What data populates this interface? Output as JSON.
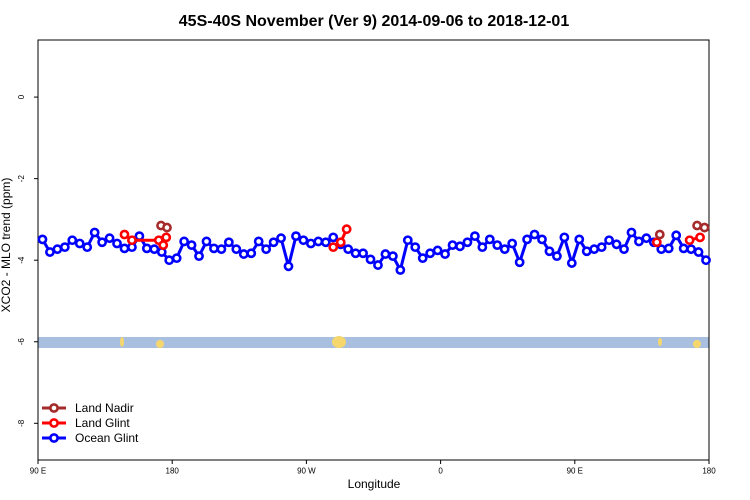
{
  "chart_data": {
    "type": "line",
    "title": "45S-40S November (Ver 9)   2014-09-06 to 2018-12-01",
    "x_label": "Longitude",
    "y_label": "XCO2 - MLO trend (ppm)",
    "xlim": [
      90,
      540
    ],
    "ylim": [
      -8.9,
      1.4
    ],
    "xticks": [
      {
        "value": 90,
        "label": "90 E"
      },
      {
        "value": 180,
        "label": "180"
      },
      {
        "value": 270,
        "label": "90 W"
      },
      {
        "value": 360,
        "label": "0"
      },
      {
        "value": 450,
        "label": "90 E"
      },
      {
        "value": 540,
        "label": "180"
      }
    ],
    "yticks": [
      0,
      -2,
      -4,
      -6,
      -8
    ],
    "legend": "bottom-left",
    "series": [
      {
        "name": "Land Nadir",
        "color": "#a52a2a",
        "x": [
          172.5,
          176.5,
          null,
          507,
          null,
          532,
          537
        ],
        "values": [
          -3.15,
          -3.2,
          null,
          -3.37,
          null,
          -3.15,
          -3.2
        ]
      },
      {
        "name": "Land Glint",
        "color": "#ff0000",
        "x": [
          148,
          153,
          171,
          174,
          176,
          null,
          288,
          293,
          297,
          null,
          505,
          null,
          527,
          534
        ],
        "values": [
          -3.37,
          -3.51,
          -3.51,
          -3.63,
          -3.44,
          null,
          -3.68,
          -3.56,
          -3.24,
          null,
          -3.56,
          null,
          -3.51,
          -3.44
        ]
      },
      {
        "name": "Ocean Glint",
        "color": "#0000ff",
        "x": [
          93,
          98,
          103,
          108,
          113,
          118,
          123,
          128,
          133,
          138,
          143,
          148,
          153,
          158,
          163,
          168,
          173,
          178,
          183,
          188,
          193,
          198,
          203,
          208,
          213,
          218,
          223,
          228,
          233,
          238,
          243,
          248,
          253,
          258,
          263,
          268,
          273,
          278,
          283,
          288,
          293,
          298,
          303,
          308,
          313,
          318,
          323,
          328,
          333,
          338,
          343,
          348,
          353,
          358,
          363,
          368,
          373,
          378,
          383,
          388,
          393,
          398,
          403,
          408,
          413,
          418,
          423,
          428,
          433,
          438,
          443,
          448,
          453,
          458,
          463,
          468,
          473,
          478,
          483,
          488,
          493,
          498,
          503,
          508,
          513,
          518,
          523,
          528,
          533,
          538
        ],
        "values": [
          -3.49,
          -3.8,
          -3.73,
          -3.68,
          -3.51,
          -3.59,
          -3.68,
          -3.32,
          -3.56,
          -3.46,
          -3.59,
          -3.71,
          -3.68,
          -3.41,
          -3.71,
          -3.73,
          -3.8,
          -4.0,
          -3.95,
          -3.54,
          -3.63,
          -3.9,
          -3.54,
          -3.71,
          -3.73,
          -3.56,
          -3.73,
          -3.85,
          -3.83,
          -3.54,
          -3.73,
          -3.56,
          -3.46,
          -4.15,
          -3.41,
          -3.51,
          -3.59,
          -3.54,
          -3.56,
          -3.44,
          -3.61,
          -3.73,
          -3.83,
          -3.83,
          -3.98,
          -4.12,
          -3.85,
          -3.9,
          -4.24,
          -3.51,
          -3.68,
          -3.95,
          -3.83,
          -3.76,
          -3.85,
          -3.63,
          -3.66,
          -3.56,
          -3.41,
          -3.68,
          -3.49,
          -3.63,
          -3.73,
          -3.59,
          -4.05,
          -3.49,
          -3.37,
          -3.49,
          -3.78,
          -3.9,
          -3.44,
          -4.07,
          -3.49,
          -3.78,
          -3.73,
          -3.68,
          -3.51,
          -3.61,
          -3.73,
          -3.32,
          -3.54,
          -3.46,
          -3.56,
          -3.73,
          -3.71,
          -3.39,
          -3.71,
          -3.73,
          -3.8,
          -4.0
        ]
      }
    ]
  }
}
